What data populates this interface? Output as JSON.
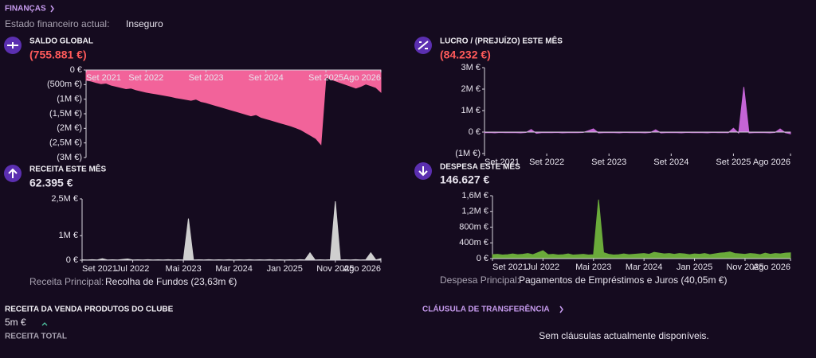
{
  "header": {
    "title": "FINANÇAS",
    "status_label": "Estado financeiro actual:",
    "status": "Inseguro"
  },
  "chart_data": [
    {
      "type": "area",
      "title": "SALDO GLOBAL",
      "headline": "(755.881 €)",
      "color": "#f2639a",
      "xaxis_position": "top",
      "categories": [
        "Set 2021",
        null,
        null,
        null,
        null,
        null,
        null,
        null,
        null,
        null,
        null,
        null,
        "Set 2022",
        null,
        null,
        null,
        null,
        null,
        null,
        null,
        null,
        null,
        null,
        null,
        "Set 2023",
        null,
        null,
        null,
        null,
        null,
        null,
        null,
        null,
        null,
        null,
        null,
        "Set 2024",
        null,
        null,
        null,
        null,
        null,
        null,
        null,
        null,
        null,
        null,
        null,
        "Set 2025",
        null,
        null,
        null,
        null,
        null,
        null,
        null,
        null,
        null,
        null,
        "Ago 2026"
      ],
      "values": [
        -350000,
        -380000,
        -430000,
        -470000,
        -450000,
        -520000,
        -560000,
        -600000,
        -640000,
        -620000,
        -680000,
        -720000,
        -760000,
        -790000,
        -820000,
        -850000,
        -880000,
        -910000,
        -950000,
        -980000,
        -1010000,
        -1040000,
        -1000000,
        -1080000,
        -1120000,
        -1170000,
        -1220000,
        -1270000,
        -1320000,
        -1370000,
        -1420000,
        -1470000,
        -1520000,
        -1570000,
        -1530000,
        -1620000,
        -1670000,
        -1720000,
        -1770000,
        -1820000,
        -1870000,
        -1920000,
        -1980000,
        -2050000,
        -2150000,
        -2250000,
        -2350000,
        -2550000,
        -250000,
        -320000,
        -380000,
        -440000,
        -500000,
        -560000,
        -620000,
        -560000,
        -480000,
        -540000,
        -600000,
        -755881
      ],
      "ylim": [
        -3000000,
        0
      ],
      "yticks": [
        {
          "value": 0,
          "label": "0 €"
        },
        {
          "value": -500000,
          "label": "(500m €)"
        },
        {
          "value": -1000000,
          "label": "(1M €)"
        },
        {
          "value": -1500000,
          "label": "(1,5M €)"
        },
        {
          "value": -2000000,
          "label": "(2M €)"
        },
        {
          "value": -2500000,
          "label": "(2,5M €)"
        },
        {
          "value": -3000000,
          "label": "(3M €)"
        }
      ]
    },
    {
      "type": "area",
      "title": "LUCRO / (PREJUÍZO) ESTE MÊS",
      "headline": "(84.232 €)",
      "color": "#c464d6",
      "xaxis_position": "bottom",
      "categories": [
        "Set 2021",
        null,
        null,
        null,
        null,
        null,
        null,
        null,
        null,
        null,
        null,
        null,
        "Set 2022",
        null,
        null,
        null,
        null,
        null,
        null,
        null,
        null,
        null,
        null,
        null,
        "Set 2023",
        null,
        null,
        null,
        null,
        null,
        null,
        null,
        null,
        null,
        null,
        null,
        "Set 2024",
        null,
        null,
        null,
        null,
        null,
        null,
        null,
        null,
        null,
        null,
        null,
        "Set 2025",
        null,
        null,
        null,
        null,
        null,
        null,
        null,
        null,
        null,
        null,
        "Ago 2026"
      ],
      "values": [
        -30000,
        -25000,
        -35000,
        -20000,
        -30000,
        -25000,
        -30000,
        -35000,
        -20000,
        120000,
        -60000,
        -30000,
        -25000,
        -30000,
        -20000,
        -35000,
        -30000,
        -25000,
        -30000,
        -20000,
        60000,
        150000,
        -40000,
        -30000,
        -25000,
        -30000,
        -35000,
        -20000,
        -30000,
        -25000,
        -30000,
        -35000,
        -20000,
        110000,
        -40000,
        -30000,
        -25000,
        -30000,
        -35000,
        -20000,
        -30000,
        -25000,
        -30000,
        -35000,
        -20000,
        -30000,
        -25000,
        -30000,
        180000,
        -50000,
        2100000,
        -40000,
        -30000,
        -25000,
        -30000,
        -35000,
        -20000,
        150000,
        -30000,
        -84232
      ],
      "ylim": [
        -1000000,
        3000000
      ],
      "yticks": [
        {
          "value": 3000000,
          "label": "3M €"
        },
        {
          "value": 2000000,
          "label": "2M €"
        },
        {
          "value": 1000000,
          "label": "1M €"
        },
        {
          "value": 0,
          "label": "0 €"
        },
        {
          "value": -1000000,
          "label": "(1M €)"
        }
      ]
    },
    {
      "type": "area",
      "title": "RECEITA ESTE MÊS",
      "headline": "62.395 €",
      "color": "#cfcfcf",
      "xaxis_position": "bottom",
      "caption_label": "Receita Principal:",
      "caption": "Recolha de Fundos (23,63m €)",
      "categories": [
        "Set 2021",
        null,
        null,
        null,
        null,
        null,
        null,
        null,
        null,
        null,
        "Jul 2022",
        null,
        null,
        null,
        null,
        null,
        null,
        null,
        null,
        null,
        "Mai 2023",
        null,
        null,
        null,
        null,
        null,
        null,
        null,
        null,
        null,
        "Mar 2024",
        null,
        null,
        null,
        null,
        null,
        null,
        null,
        null,
        null,
        "Jan 2025",
        null,
        null,
        null,
        null,
        null,
        null,
        null,
        null,
        null,
        "Nov 2025",
        null,
        null,
        null,
        null,
        null,
        null,
        null,
        null,
        "Ago 2026"
      ],
      "values": [
        15000,
        10000,
        20000,
        10000,
        60000,
        10000,
        15000,
        10000,
        30000,
        50000,
        10000,
        15000,
        10000,
        20000,
        10000,
        15000,
        10000,
        20000,
        10000,
        15000,
        10000,
        1700000,
        10000,
        15000,
        10000,
        20000,
        10000,
        15000,
        10000,
        20000,
        10000,
        15000,
        10000,
        20000,
        10000,
        15000,
        10000,
        20000,
        10000,
        15000,
        10000,
        15000,
        10000,
        20000,
        10000,
        300000,
        10000,
        15000,
        10000,
        20000,
        2400000,
        10000,
        15000,
        10000,
        20000,
        10000,
        15000,
        300000,
        10000,
        62395
      ],
      "ylim": [
        0,
        2500000
      ],
      "yticks": [
        {
          "value": 0,
          "label": "0 €"
        },
        {
          "value": 1000000,
          "label": "1M €"
        },
        {
          "value": 2500000,
          "label": "2,5M €"
        }
      ]
    },
    {
      "type": "area",
      "title": "DESPESA ESTE MÊS",
      "headline": "146.627 €",
      "color": "#6aaa3a",
      "xaxis_position": "bottom",
      "caption_label": "Despesa Principal:",
      "caption": "Pagamentos de Empréstimos e Juros (40,05m €)",
      "categories": [
        "Set 2021",
        null,
        null,
        null,
        null,
        null,
        null,
        null,
        null,
        null,
        "Jul 2022",
        null,
        null,
        null,
        null,
        null,
        null,
        null,
        null,
        null,
        "Mai 2023",
        null,
        null,
        null,
        null,
        null,
        null,
        null,
        null,
        null,
        "Mar 2024",
        null,
        null,
        null,
        null,
        null,
        null,
        null,
        null,
        null,
        "Jan 2025",
        null,
        null,
        null,
        null,
        null,
        null,
        null,
        null,
        null,
        "Nov 2025",
        null,
        null,
        null,
        null,
        null,
        null,
        null,
        null,
        "Ago 2026"
      ],
      "values": [
        100000,
        110000,
        90000,
        100000,
        120000,
        100000,
        110000,
        130000,
        100000,
        150000,
        200000,
        100000,
        110000,
        90000,
        100000,
        120000,
        90000,
        100000,
        110000,
        90000,
        100000,
        1500000,
        150000,
        110000,
        90000,
        100000,
        120000,
        100000,
        110000,
        120000,
        130000,
        110000,
        160000,
        140000,
        120000,
        130000,
        110000,
        130000,
        120000,
        100000,
        120000,
        110000,
        130000,
        100000,
        120000,
        140000,
        150000,
        170000,
        130000,
        120000,
        110000,
        130000,
        120000,
        100000,
        140000,
        110000,
        130000,
        120000,
        140000,
        146627
      ],
      "ylim": [
        0,
        1600000
      ],
      "yticks": [
        {
          "value": 0,
          "label": "0 €"
        },
        {
          "value": 400000,
          "label": "400m €"
        },
        {
          "value": 800000,
          "label": "800m €"
        },
        {
          "value": 1200000,
          "label": "1,2M €"
        },
        {
          "value": 1600000,
          "label": "1,6M €"
        }
      ]
    }
  ],
  "merch": {
    "title": "RECEITA DA VENDA PRODUTOS DO CLUBE",
    "value": "5m €",
    "caption": "RECEITA TOTAL"
  },
  "clause": {
    "title": "CLÁUSULA DE TRANSFERÊNCIA",
    "empty": "Sem cláusulas actualmente disponíveis."
  }
}
